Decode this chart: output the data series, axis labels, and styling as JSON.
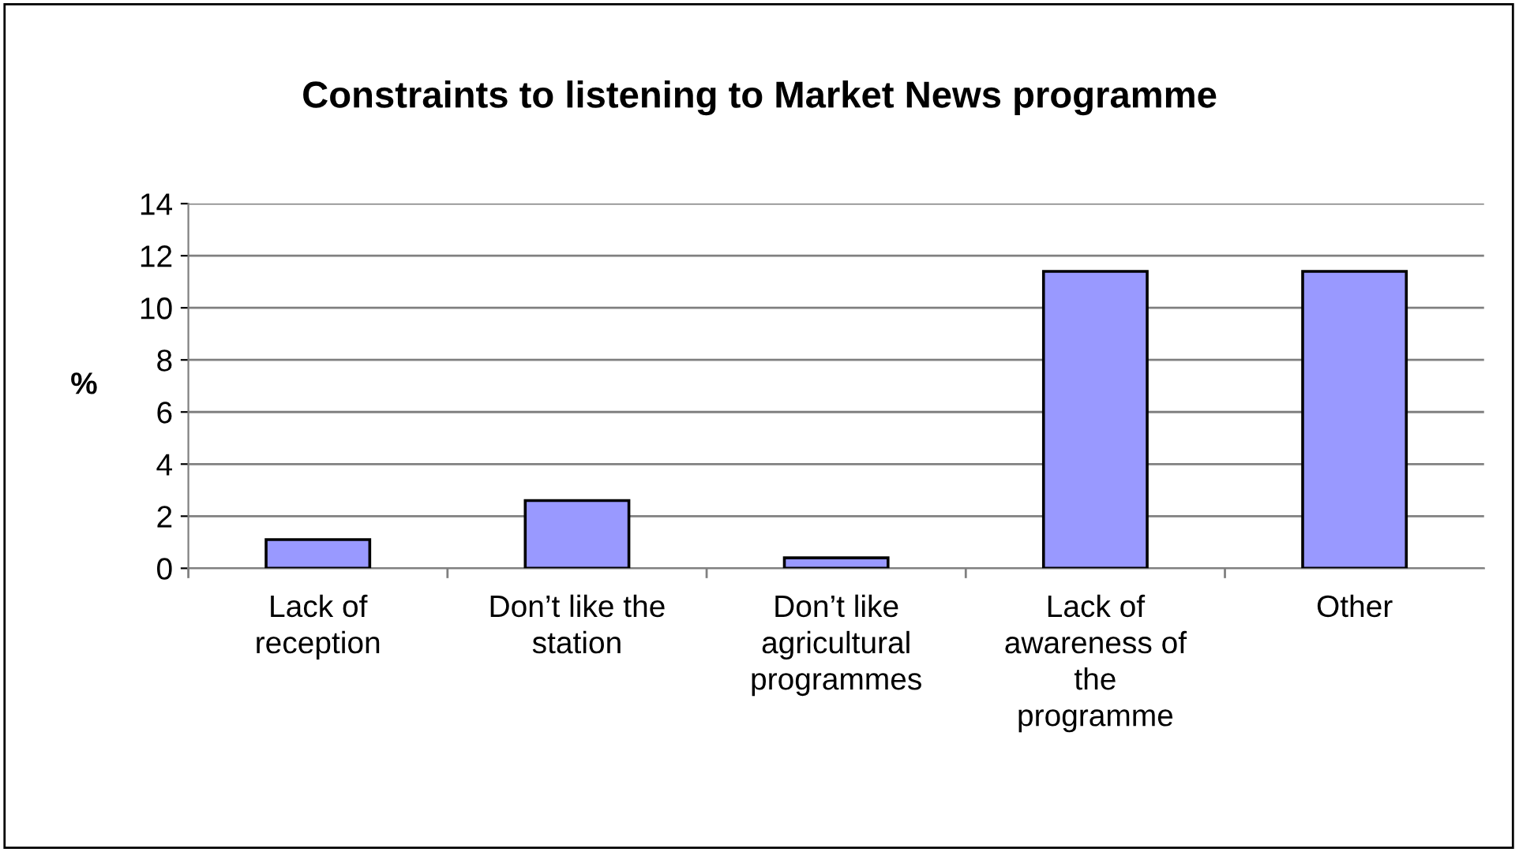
{
  "chart_data": {
    "type": "bar",
    "title": "Constraints to listening to Market News programme",
    "ylabel": "%",
    "categories": [
      "Lack of\nreception",
      "Don’t like the\nstation",
      "Don’t like\nagricultural\nprogrammes",
      "Lack of\nawareness of\nthe\nprogramme",
      "Other"
    ],
    "values": [
      1.1,
      2.6,
      0.4,
      11.4,
      11.4
    ],
    "color": "#9999ff",
    "ylim": [
      0,
      14
    ],
    "yticks": [
      0,
      2,
      4,
      6,
      8,
      10,
      12,
      14
    ],
    "grid": "y",
    "legend": false
  }
}
